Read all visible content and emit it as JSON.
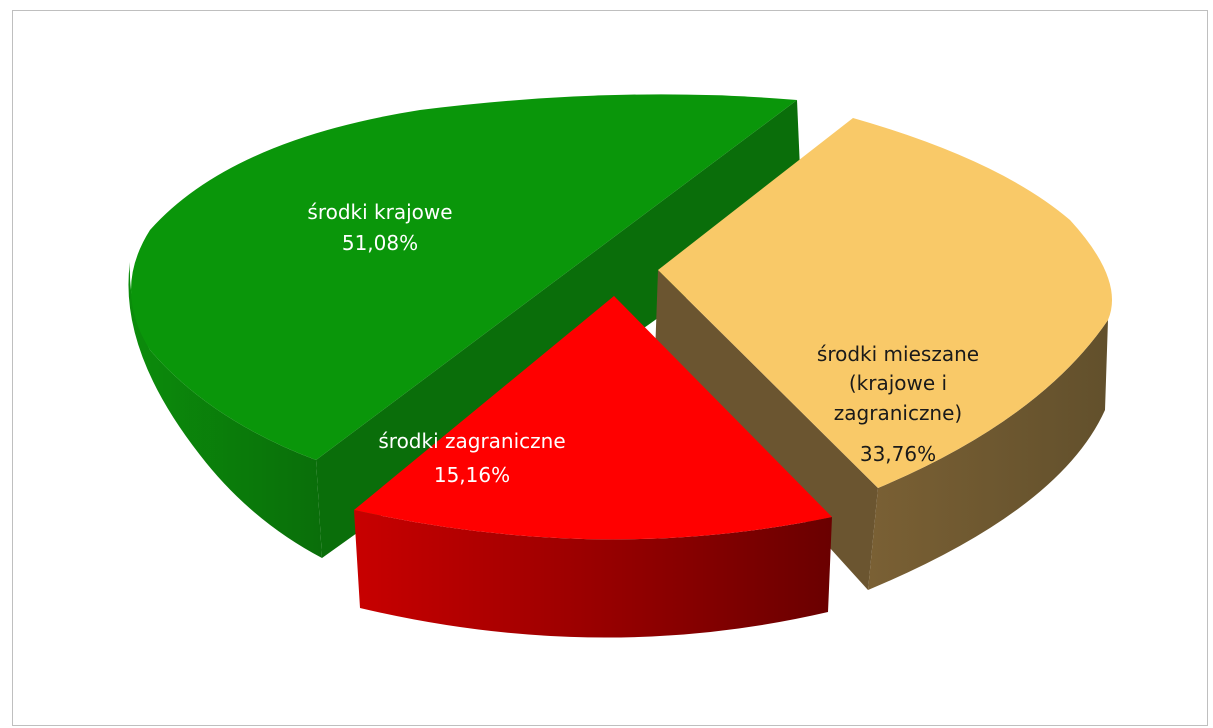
{
  "chart_data": {
    "type": "pie",
    "style": "3d-exploded",
    "slices": [
      {
        "key": "krajowe",
        "label": "środki krajowe",
        "value_label": "51,08%",
        "value": 51.08,
        "color": "#0a960a",
        "side_color": "#0b7a0b"
      },
      {
        "key": "mieszane",
        "label_lines": [
          "środki mieszane",
          "(krajowe i",
          "zagraniczne)"
        ],
        "value_label": "33,76%",
        "value": 33.76,
        "color": "#f9c968",
        "side_color": "#6f5630"
      },
      {
        "key": "zagraniczne",
        "label": "środki zagraniczne",
        "value_label": "15,16%",
        "value": 15.16,
        "color": "#ff0000",
        "side_color": "#b00000"
      }
    ]
  }
}
